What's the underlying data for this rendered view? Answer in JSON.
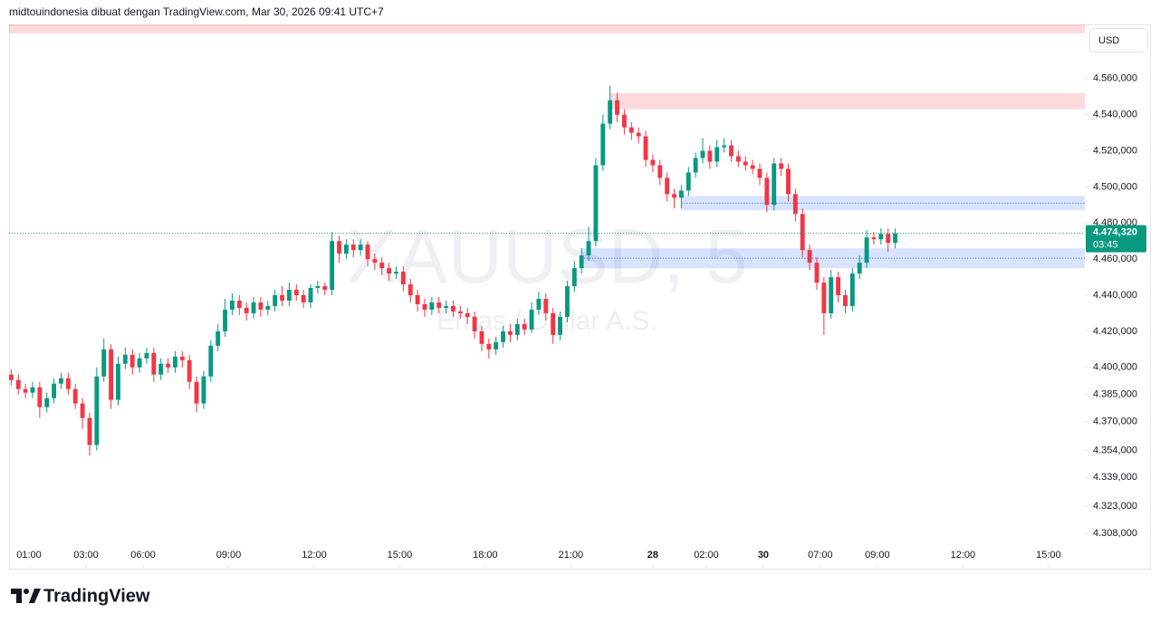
{
  "header": {
    "attribution": "midtouindonesia dibuat dengan TradingView.com, Mar 30, 2026 09:41 UTC+7"
  },
  "chart_data": {
    "type": "candlestick",
    "symbol_watermark": "XAUUSD, 5",
    "description_watermark": "Emas / Dollar A.S.",
    "currency": "USD",
    "up_color": "#089981",
    "down_color": "#f23645",
    "open": [
      4396,
      4393,
      4388,
      4386,
      4389,
      4378,
      4383,
      4391,
      4394,
      4388,
      4380,
      4372,
      4357,
      4395,
      4410,
      4382,
      4402,
      4407,
      4400,
      4405,
      4408,
      4396,
      4402,
      4400,
      4406,
      4404,
      4392,
      4380,
      4395,
      4412,
      4420,
      4432,
      4437,
      4433,
      4430,
      4436,
      4432,
      4434,
      4440,
      4437,
      4443,
      4440,
      4436,
      4444,
      4445,
      4443,
      4470,
      4463,
      4468,
      4465,
      4468,
      4460,
      4458,
      4455,
      4452,
      4453,
      4446,
      4440,
      4435,
      4432,
      4436,
      4433,
      4434,
      4431,
      4430,
      4428,
      4420,
      4413,
      4410,
      4414,
      4420,
      4418,
      4424,
      4421,
      4432,
      4438,
      4430,
      4418,
      4428,
      4445,
      4455,
      4462,
      4470,
      4512,
      4535,
      4548,
      4540,
      4533,
      4530,
      4528,
      4515,
      4512,
      4505,
      4496,
      4494,
      4498,
      4508,
      4516,
      4520,
      4514,
      4522,
      4523,
      4517,
      4514,
      4512,
      4510,
      4505,
      4490,
      4513,
      4510,
      4496,
      4485,
      4465,
      4458,
      4447,
      4430,
      4450,
      4440,
      4434,
      4452,
      4458,
      4472,
      4471,
      4474,
      4469
    ],
    "high": [
      4399,
      4396,
      4391,
      4392,
      4392,
      4386,
      4394,
      4397,
      4397,
      4391,
      4383,
      4375,
      4400,
      4416,
      4413,
      4406,
      4411,
      4410,
      4408,
      4411,
      4411,
      4405,
      4405,
      4409,
      4409,
      4407,
      4395,
      4398,
      4415,
      4424,
      4438,
      4441,
      4440,
      4436,
      4439,
      4439,
      4437,
      4443,
      4445,
      4447,
      4446,
      4443,
      4446,
      4448,
      4447,
      4475,
      4473,
      4471,
      4471,
      4471,
      4470,
      4463,
      4461,
      4458,
      4456,
      4456,
      4449,
      4443,
      4438,
      4439,
      4439,
      4437,
      4437,
      4434,
      4433,
      4431,
      4423,
      4416,
      4417,
      4423,
      4424,
      4427,
      4427,
      4436,
      4442,
      4441,
      4433,
      4431,
      4448,
      4459,
      4466,
      4478,
      4516,
      4540,
      4556,
      4552,
      4543,
      4536,
      4533,
      4531,
      4518,
      4515,
      4508,
      4499,
      4501,
      4511,
      4519,
      4527,
      4523,
      4526,
      4527,
      4526,
      4520,
      4517,
      4515,
      4513,
      4508,
      4516,
      4516,
      4513,
      4499,
      4488,
      4468,
      4461,
      4450,
      4454,
      4453,
      4443,
      4455,
      4462,
      4476,
      4475,
      4477,
      4477,
      4477
    ],
    "low": [
      4390,
      4385,
      4383,
      4383,
      4372,
      4375,
      4380,
      4388,
      4385,
      4377,
      4366,
      4351,
      4354,
      4392,
      4377,
      4379,
      4399,
      4396,
      4397,
      4402,
      4392,
      4393,
      4397,
      4397,
      4400,
      4388,
      4375,
      4377,
      4392,
      4409,
      4417,
      4429,
      4429,
      4426,
      4427,
      4428,
      4429,
      4431,
      4434,
      4434,
      4437,
      4433,
      4433,
      4441,
      4440,
      4440,
      4458,
      4460,
      4461,
      4462,
      4456,
      4454,
      4451,
      4448,
      4449,
      4442,
      4436,
      4431,
      4428,
      4429,
      4430,
      4430,
      4428,
      4427,
      4424,
      4416,
      4409,
      4405,
      4407,
      4411,
      4414,
      4415,
      4418,
      4419,
      4429,
      4426,
      4413,
      4415,
      4425,
      4442,
      4452,
      4459,
      4467,
      4509,
      4532,
      4536,
      4529,
      4526,
      4524,
      4511,
      4508,
      4501,
      4492,
      4488,
      4488,
      4495,
      4505,
      4513,
      4510,
      4511,
      4519,
      4514,
      4511,
      4509,
      4507,
      4501,
      4486,
      4487,
      4506,
      4492,
      4481,
      4461,
      4454,
      4443,
      4418,
      4427,
      4436,
      4430,
      4431,
      4449,
      4455,
      4468,
      4468,
      4464,
      4466
    ],
    "close": [
      4393,
      4388,
      4386,
      4389,
      4378,
      4383,
      4391,
      4394,
      4388,
      4380,
      4372,
      4357,
      4395,
      4410,
      4382,
      4402,
      4407,
      4400,
      4405,
      4408,
      4396,
      4402,
      4400,
      4406,
      4404,
      4392,
      4380,
      4395,
      4412,
      4420,
      4432,
      4437,
      4433,
      4430,
      4436,
      4432,
      4434,
      4440,
      4437,
      4443,
      4440,
      4436,
      4444,
      4445,
      4443,
      4470,
      4463,
      4468,
      4465,
      4468,
      4460,
      4458,
      4455,
      4452,
      4453,
      4446,
      4440,
      4435,
      4432,
      4436,
      4433,
      4434,
      4431,
      4430,
      4428,
      4420,
      4413,
      4410,
      4414,
      4420,
      4418,
      4424,
      4421,
      4432,
      4438,
      4430,
      4418,
      4428,
      4445,
      4455,
      4462,
      4470,
      4512,
      4535,
      4548,
      4540,
      4533,
      4530,
      4528,
      4515,
      4512,
      4505,
      4496,
      4494,
      4498,
      4508,
      4516,
      4520,
      4514,
      4522,
      4523,
      4517,
      4514,
      4512,
      4510,
      4505,
      4490,
      4513,
      4510,
      4496,
      4485,
      4465,
      4458,
      4447,
      4430,
      4450,
      4440,
      4434,
      4452,
      4458,
      4472,
      4471,
      4474,
      4469,
      4474.32
    ],
    "xlim": [
      -0.3,
      150.6
    ],
    "xticks": [
      {
        "value": 2.5,
        "label": "01:00"
      },
      {
        "value": 10.5,
        "label": "03:00"
      },
      {
        "value": 18.5,
        "label": "06:00"
      },
      {
        "value": 30.5,
        "label": "09:00"
      },
      {
        "value": 42.5,
        "label": "12:00"
      },
      {
        "value": 54.5,
        "label": "15:00"
      },
      {
        "value": 66.5,
        "label": "18:00"
      },
      {
        "value": 78.5,
        "label": "21:00"
      },
      {
        "value": 90,
        "label": "28"
      },
      {
        "value": 97.5,
        "label": "02:00"
      },
      {
        "value": 105.5,
        "label": "30"
      },
      {
        "value": 113.5,
        "label": "07:00"
      },
      {
        "value": 121.5,
        "label": "09:00"
      },
      {
        "value": 133.5,
        "label": "12:00"
      },
      {
        "value": 145.5,
        "label": "15:00"
      }
    ],
    "ylim": [
      4289,
      4590
    ],
    "yticks": [
      {
        "value": 4560,
        "label": "4.560,000"
      },
      {
        "value": 4540,
        "label": "4.540,000"
      },
      {
        "value": 4520,
        "label": "4.520,000"
      },
      {
        "value": 4500,
        "label": "4.500,000"
      },
      {
        "value": 4480,
        "label": "4.480,000"
      },
      {
        "value": 4460,
        "label": "4.460,000"
      },
      {
        "value": 4440,
        "label": "4.440,000"
      },
      {
        "value": 4420,
        "label": "4.420,000"
      },
      {
        "value": 4400,
        "label": "4.400,000"
      },
      {
        "value": 4385,
        "label": "4.385,000"
      },
      {
        "value": 4370,
        "label": "4.370,000"
      },
      {
        "value": 4354,
        "label": "4.354,000"
      },
      {
        "value": 4339,
        "label": "4.339,000"
      },
      {
        "value": 4323,
        "label": "4.323,000"
      },
      {
        "value": 4308,
        "label": "4.308,000"
      }
    ],
    "zones": [
      {
        "start": -0.3,
        "low": 4585,
        "high": 4590,
        "color": "#f23645",
        "midline": false
      },
      {
        "start": 84,
        "low": 4543,
        "high": 4552,
        "color": "#f23645",
        "midline": false
      },
      {
        "start": 94,
        "low": 4487,
        "high": 4495,
        "color": "#2962ff",
        "midline": true
      },
      {
        "start": 80,
        "low": 4455,
        "high": 4466,
        "color": "#2962ff",
        "midline": true
      }
    ],
    "last_price": {
      "value": 4474.32,
      "label": "4.474,320"
    },
    "countdown": "03:45"
  },
  "footer": {
    "logo": "TradingView"
  }
}
